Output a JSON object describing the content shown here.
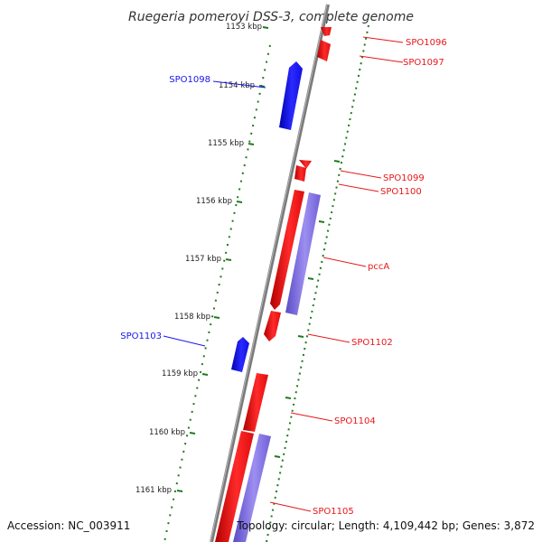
{
  "title": "Ruegeria pomeroyi DSS-3, complete genome",
  "footer": {
    "accession": "Accession: NC_003911",
    "stats": "Topology: circular; Length: 4,109,442 bp; Genes: 3,872"
  },
  "colors": {
    "forward": "#e8161b",
    "reverse": "#1717e6",
    "rna": "#7b68dd",
    "backbone": "#8a8a8a",
    "ticks": "#1f7a1f"
  },
  "ticks": [
    "1153 kbp",
    "1154 kbp",
    "1155 kbp",
    "1156 kbp",
    "1157 kbp",
    "1158 kbp",
    "1159 kbp",
    "1160 kbp",
    "1161 kbp"
  ],
  "genes": [
    {
      "label": "SPO1096",
      "strand": "forward"
    },
    {
      "label": "SPO1097",
      "strand": "forward"
    },
    {
      "label": "SPO1098",
      "strand": "reverse"
    },
    {
      "label": "SPO1099",
      "strand": "forward"
    },
    {
      "label": "SPO1100",
      "strand": "forward"
    },
    {
      "label": "pccA",
      "strand": "forward"
    },
    {
      "label": "SPO1102",
      "strand": "forward"
    },
    {
      "label": "SPO1103",
      "strand": "reverse"
    },
    {
      "label": "SPO1104",
      "strand": "forward"
    },
    {
      "label": "SPO1105",
      "strand": "forward"
    }
  ]
}
